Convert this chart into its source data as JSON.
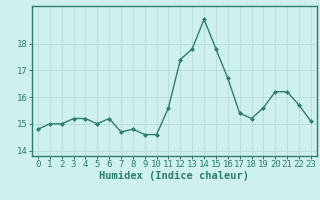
{
  "x": [
    0,
    1,
    2,
    3,
    4,
    5,
    6,
    7,
    8,
    9,
    10,
    11,
    12,
    13,
    14,
    15,
    16,
    17,
    18,
    19,
    20,
    21,
    22,
    23
  ],
  "y": [
    14.8,
    15.0,
    15.0,
    15.2,
    15.2,
    15.0,
    15.2,
    14.7,
    14.8,
    14.6,
    14.6,
    15.6,
    17.4,
    17.8,
    18.9,
    17.8,
    16.7,
    15.4,
    15.2,
    15.6,
    16.2,
    16.2,
    15.7,
    15.1
  ],
  "line_color": "#2e7d6e",
  "marker": "D",
  "marker_size": 2.0,
  "bg_color": "#cff0f0",
  "grid_color": "#b8dede",
  "xlabel": "Humidex (Indice chaleur)",
  "ylim": [
    13.8,
    19.4
  ],
  "yticks": [
    14,
    15,
    16,
    17,
    18
  ],
  "xticks": [
    0,
    1,
    2,
    3,
    4,
    5,
    6,
    7,
    8,
    9,
    10,
    11,
    12,
    13,
    14,
    15,
    16,
    17,
    18,
    19,
    20,
    21,
    22,
    23
  ],
  "xlabel_fontsize": 7.5,
  "tick_fontsize": 6.5,
  "line_width": 1.0
}
